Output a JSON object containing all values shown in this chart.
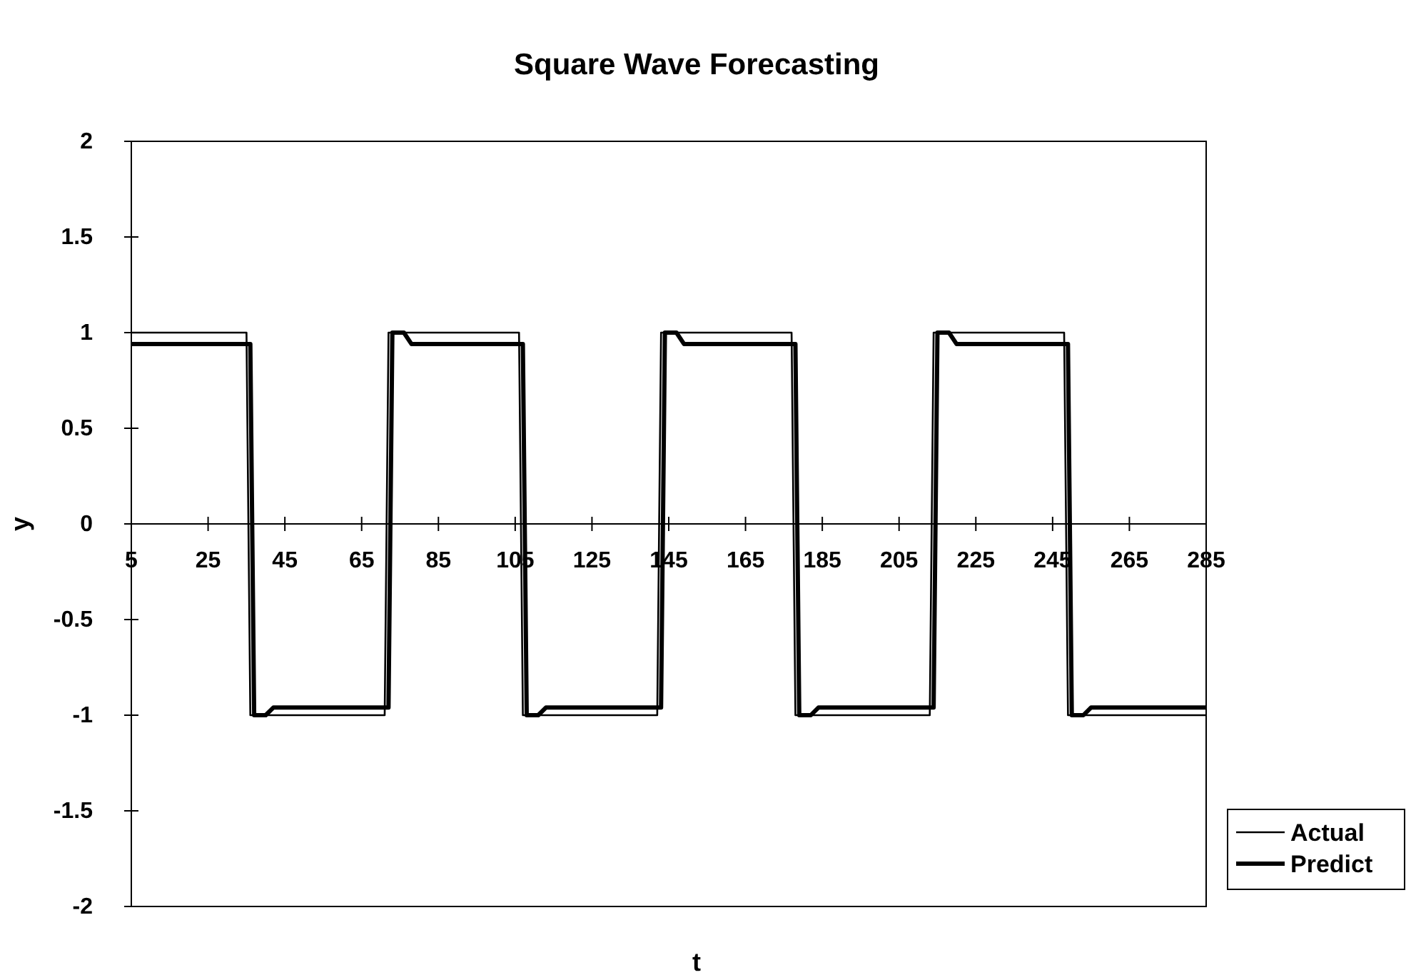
{
  "chart_data": {
    "type": "line",
    "title": "Square Wave Forecasting",
    "xlabel": "t",
    "ylabel": "y",
    "xlim": [
      5,
      285
    ],
    "xticks": [
      5,
      25,
      45,
      65,
      85,
      105,
      125,
      145,
      165,
      185,
      205,
      225,
      245,
      265,
      285
    ],
    "ylim": [
      -2,
      2
    ],
    "yticks": [
      -2,
      -1.5,
      -1,
      -0.5,
      0,
      0.5,
      1,
      1.5,
      2
    ],
    "grid": false,
    "legend": "right",
    "marker": "none",
    "line_style": "solid",
    "series": [
      {
        "name": "Actual",
        "color": "#000000",
        "x": [
          5,
          35,
          36,
          71,
          72,
          106,
          107,
          142,
          143,
          177,
          178,
          213,
          214,
          248,
          249,
          285
        ],
        "values": [
          1,
          1,
          -1,
          -1,
          1,
          1,
          -1,
          -1,
          1,
          1,
          -1,
          -1,
          1,
          1,
          -1,
          -1
        ]
      },
      {
        "name": "Predict",
        "color": "#000000",
        "x": [
          5,
          36,
          37,
          40,
          42,
          72,
          73,
          76,
          78,
          107,
          108,
          111,
          113,
          143,
          144,
          147,
          149,
          178,
          179,
          182,
          184,
          214,
          215,
          218,
          220,
          249,
          250,
          253,
          255,
          285
        ],
        "values": [
          0.94,
          0.94,
          -1,
          -1,
          -0.96,
          -0.96,
          1,
          1,
          0.94,
          0.94,
          -1,
          -1,
          -0.96,
          -0.96,
          1,
          1,
          0.94,
          0.94,
          -1,
          -1,
          -0.96,
          -0.96,
          1,
          1,
          0.94,
          0.94,
          -1,
          -1,
          -0.96,
          -0.96
        ]
      }
    ]
  }
}
